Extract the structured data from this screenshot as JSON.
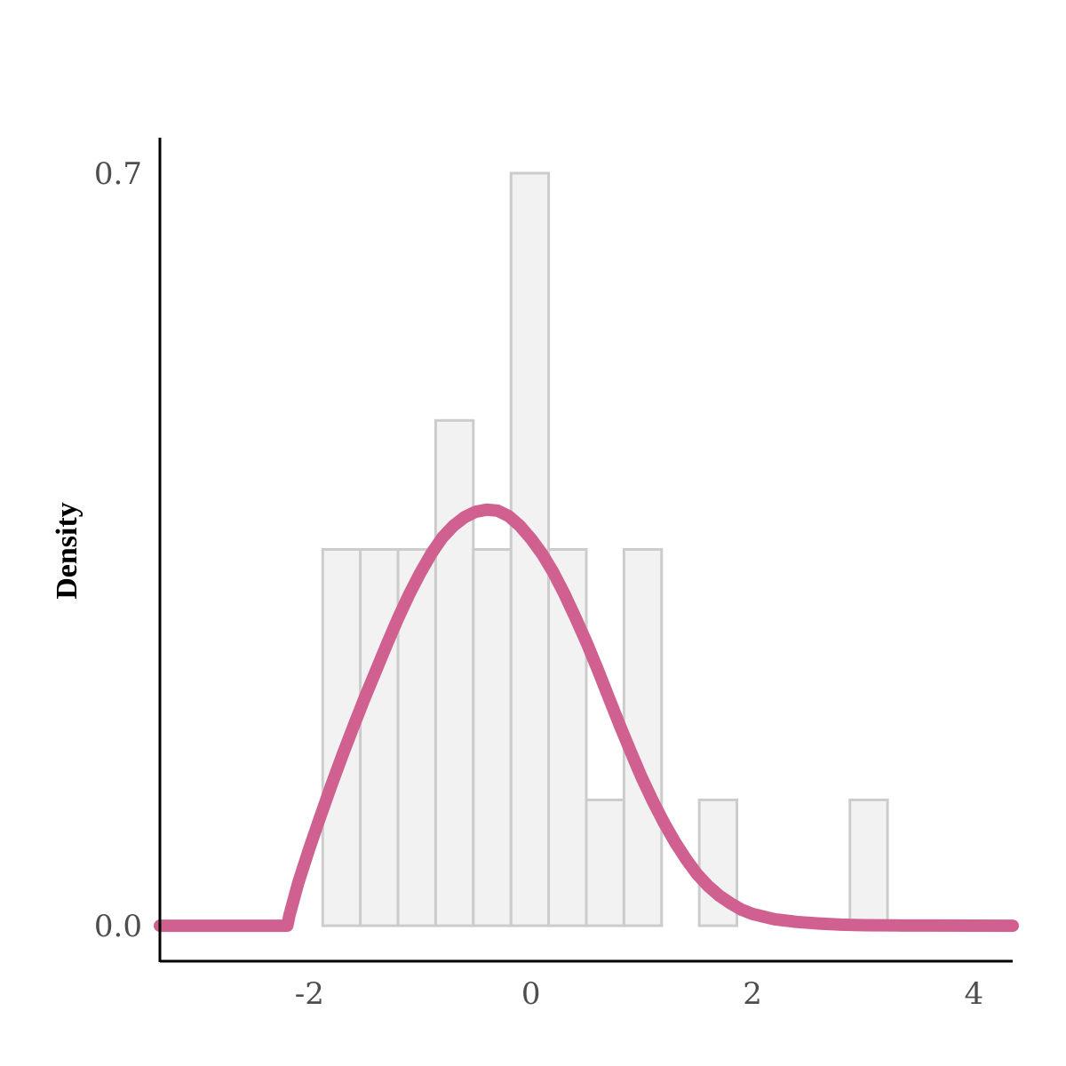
{
  "chart_data": {
    "type": "histogram",
    "xlabel": "",
    "ylabel": "Density",
    "xlim": [
      -3.35,
      4.35
    ],
    "ylim": [
      -0.033,
      0.733
    ],
    "x_ticks": [
      -2,
      0,
      2,
      4
    ],
    "x_tick_labels": [
      "-2",
      "0",
      "2",
      "4"
    ],
    "y_ticks": [
      0.0,
      0.7
    ],
    "y_tick_labels": [
      "0.0",
      "0.7"
    ],
    "grid": false,
    "colors": {
      "bar_fill": "#f2f2f2",
      "bar_stroke": "#cccccc",
      "curve": "#d06090",
      "axis": "#000000",
      "tick_text": "#4d4d4d"
    },
    "histogram": {
      "bin_edges": [
        -1.88,
        -1.54,
        -1.2,
        -0.86,
        -0.52,
        -0.18,
        0.16,
        0.5,
        0.84,
        1.18,
        1.52,
        1.86,
        2.2,
        2.54,
        2.88,
        3.22
      ],
      "densities": [
        0.35,
        0.35,
        0.35,
        0.47,
        0.35,
        0.7,
        0.35,
        0.117,
        0.35,
        0.0,
        0.117,
        0.0,
        0.0,
        0.0,
        0.117
      ]
    },
    "curve": {
      "x": [
        -3.35,
        -2.2,
        -2.18,
        -2.1,
        -2.0,
        -1.9,
        -1.8,
        -1.7,
        -1.6,
        -1.5,
        -1.4,
        -1.3,
        -1.2,
        -1.1,
        -1.0,
        -0.9,
        -0.8,
        -0.7,
        -0.6,
        -0.5,
        -0.4,
        -0.3,
        -0.2,
        -0.1,
        0.0,
        0.1,
        0.2,
        0.3,
        0.4,
        0.5,
        0.6,
        0.7,
        0.8,
        0.9,
        1.0,
        1.1,
        1.2,
        1.3,
        1.4,
        1.5,
        1.6,
        1.7,
        1.8,
        1.9,
        2.0,
        2.2,
        2.4,
        2.6,
        2.8,
        3.0,
        3.3,
        3.6,
        4.35
      ],
      "y": [
        0.0,
        0.0,
        0.01,
        0.04,
        0.072,
        0.102,
        0.131,
        0.159,
        0.186,
        0.212,
        0.237,
        0.262,
        0.286,
        0.308,
        0.328,
        0.346,
        0.361,
        0.372,
        0.38,
        0.385,
        0.387,
        0.386,
        0.381,
        0.372,
        0.36,
        0.346,
        0.329,
        0.309,
        0.287,
        0.264,
        0.239,
        0.213,
        0.187,
        0.162,
        0.138,
        0.116,
        0.096,
        0.078,
        0.062,
        0.048,
        0.037,
        0.028,
        0.021,
        0.015,
        0.011,
        0.006,
        0.0035,
        0.002,
        0.001,
        0.0005,
        0.0002,
        0.0001,
        0.0
      ]
    }
  }
}
